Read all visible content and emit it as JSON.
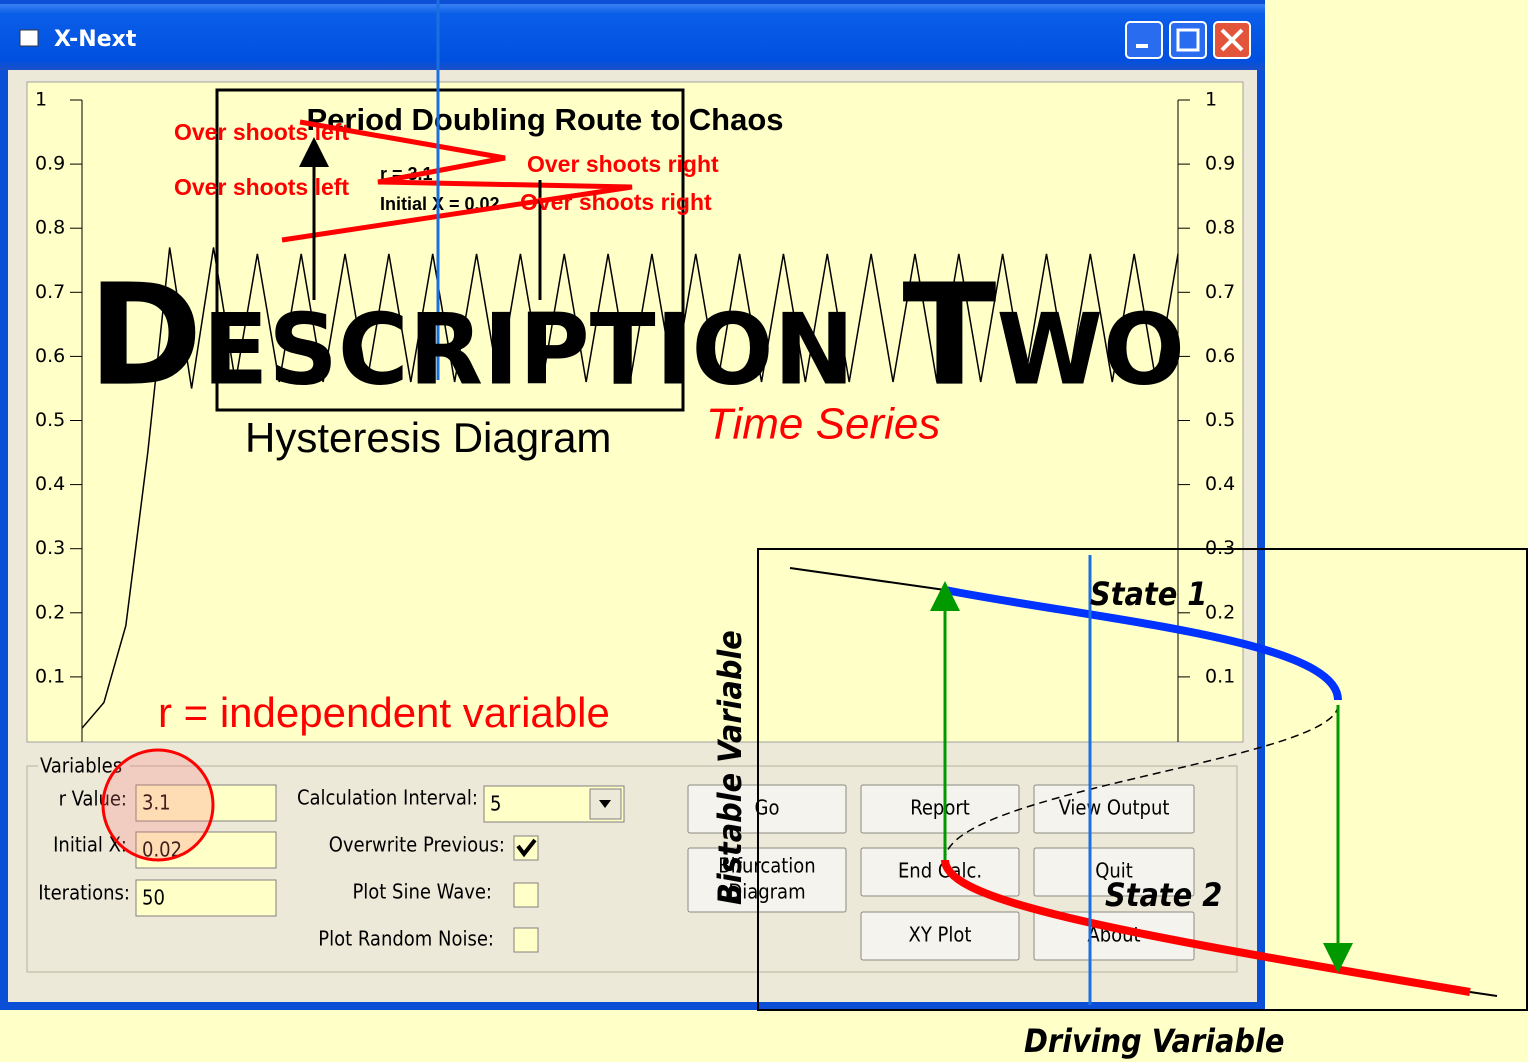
{
  "window": {
    "title": "X-Next"
  },
  "plot": {
    "title": "Period Doubling Route to Chaos",
    "r_label": "r = 3.1",
    "x_label": "Initial X = 0.02",
    "yticks": [
      1,
      0.9,
      0.8,
      0.7,
      0.6,
      0.5,
      0.4,
      0.3,
      0.2,
      0.1
    ],
    "ylim": [
      0,
      1
    ],
    "series": {
      "values": [
        0.02,
        0.06,
        0.18,
        0.45,
        0.77,
        0.55,
        0.77,
        0.56,
        0.76,
        0.56,
        0.76,
        0.56,
        0.76,
        0.56,
        0.76,
        0.56,
        0.76,
        0.56,
        0.76,
        0.56,
        0.76,
        0.56,
        0.76,
        0.56,
        0.76,
        0.56,
        0.76,
        0.56,
        0.76,
        0.56,
        0.76,
        0.56,
        0.76,
        0.56,
        0.76,
        0.56,
        0.76,
        0.56,
        0.76,
        0.56,
        0.76,
        0.56,
        0.76,
        0.56,
        0.76,
        0.56,
        0.76,
        0.56,
        0.76,
        0.56,
        0.76
      ]
    }
  },
  "annotations": {
    "overshoot_left_1": "Over shoots left",
    "overshoot_left_2": "Over shoots left",
    "overshoot_right_1": "Over shoots right",
    "overshoot_right_2": "Over shoots right",
    "heading": "Description Two",
    "hysteresis": "Hysteresis Diagram",
    "time_series": "Time Series",
    "r_note": "r = independent variable",
    "state1": "State 1",
    "state2": "State 2",
    "bistable": "Bistable Variable",
    "driving": "Driving Variable"
  },
  "panel": {
    "group": "Variables",
    "r_label": "r Value:",
    "r_value": "3.1",
    "x_label": "Initial X:",
    "x_value": "0.02",
    "iter_label": "Iterations:",
    "iter_value": "50",
    "interval_label": "Calculation Interval:",
    "interval_value": "5",
    "overwrite": "Overwrite Previous:",
    "sine": "Plot Sine Wave:",
    "noise": "Plot Random Noise:",
    "buttons": [
      "Go",
      "Report",
      "View Output",
      "Bifurcation",
      "Diagram",
      "End Calc.",
      "Quit",
      "XY Plot",
      "About"
    ]
  }
}
